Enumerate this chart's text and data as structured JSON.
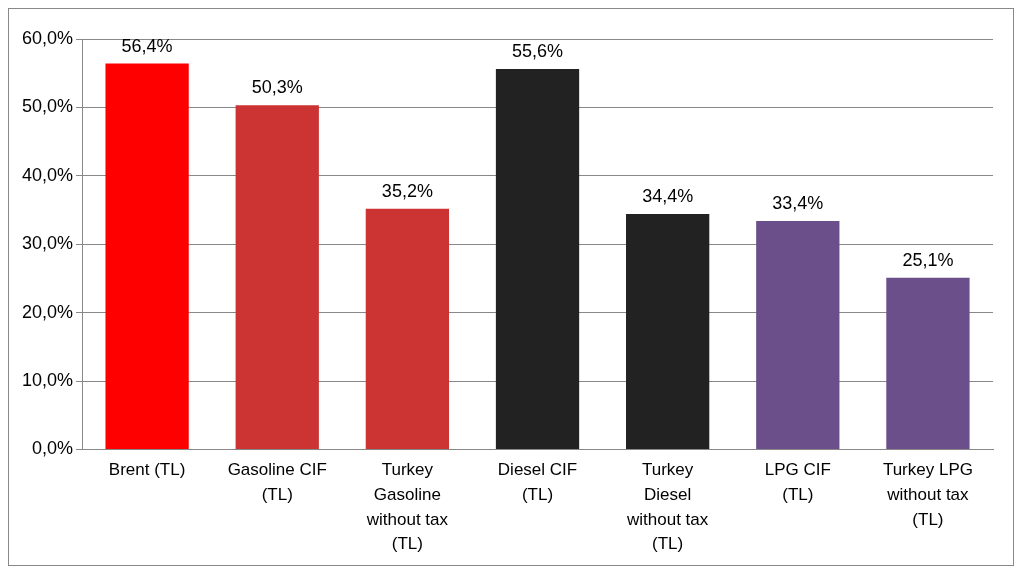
{
  "chart_data": {
    "type": "bar",
    "categories": [
      "Brent (TL)",
      "Gasoline CIF (TL)",
      "Turkey Gasoline without tax (TL)",
      "Diesel CIF (TL)",
      "Turkey Diesel without tax (TL)",
      "LPG CIF (TL)",
      "Turkey LPG without tax (TL)"
    ],
    "values": [
      56.4,
      50.3,
      35.2,
      55.6,
      34.4,
      33.4,
      25.1
    ],
    "value_labels": [
      "56,4%",
      "50,3%",
      "35,2%",
      "55,6%",
      "34,4%",
      "33,4%",
      "25,1%"
    ],
    "colors": [
      "#ff0000",
      "#cc3333",
      "#cc3333",
      "#222222",
      "#222222",
      "#6a4f8a",
      "#6a4f8a"
    ],
    "ylim": [
      0,
      60
    ],
    "yticks": [
      {
        "value": 0,
        "label": "0,0%"
      },
      {
        "value": 10,
        "label": "10,0%"
      },
      {
        "value": 20,
        "label": "20,0%"
      },
      {
        "value": 30,
        "label": "30,0%"
      },
      {
        "value": 40,
        "label": "40,0%"
      },
      {
        "value": 50,
        "label": "50,0%"
      },
      {
        "value": 60,
        "label": "60,0%"
      }
    ],
    "grid": "y",
    "legend": false
  }
}
